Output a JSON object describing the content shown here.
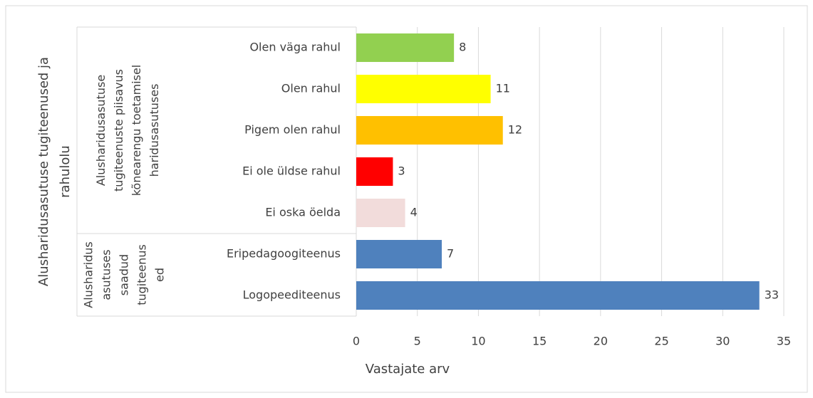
{
  "chart_data": {
    "type": "bar",
    "orientation": "horizontal",
    "y_title": [
      "Alusharidusasutuse tugiteenused ja",
      "rahulolu"
    ],
    "x_title": "Vastajate arv",
    "groups": [
      {
        "label": [
          "Alusharidusasutuse",
          "tugiteenuste piisavus",
          "kõnearengu toetamisel",
          "haridusasutuses"
        ],
        "categories": [
          "Olen väga rahul",
          "Olen rahul",
          "Pigem olen rahul",
          "Ei ole üldse rahul",
          "Ei oska öelda"
        ],
        "values": [
          8,
          11,
          12,
          3,
          4
        ],
        "colors": [
          "#92d050",
          "#ffff00",
          "#ffc000",
          "#ff0000",
          "#f2dcdb"
        ]
      },
      {
        "label": [
          "Alusharidus",
          "asutuses",
          "saadud",
          "tugiteenus",
          "ed"
        ],
        "categories": [
          "Eripedagoogiteenus",
          "Logopeediteenus"
        ],
        "values": [
          7,
          33
        ],
        "colors": [
          "#4f81bd",
          "#4f81bd"
        ]
      }
    ],
    "xlim": [
      0,
      35
    ],
    "xticks": [
      0,
      5,
      10,
      15,
      20,
      25,
      30,
      35
    ],
    "grid": true
  }
}
